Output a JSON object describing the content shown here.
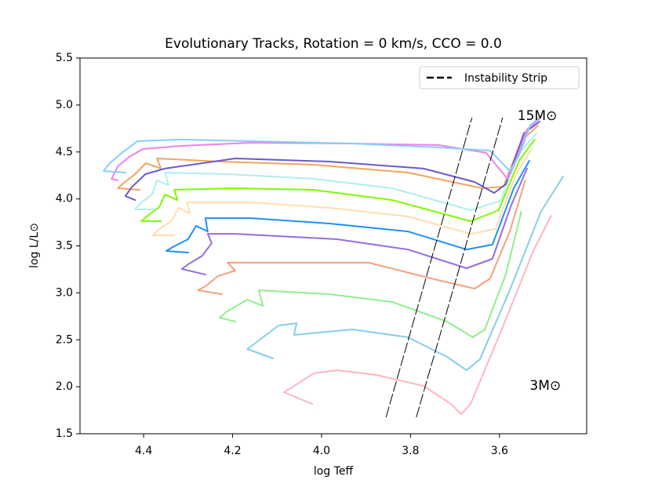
{
  "chart_data": {
    "type": "line",
    "title": "Evolutionary Tracks, Rotation = 0 km/s, CCO = 0.0",
    "xlabel": "log Teff",
    "ylabel": "log L/L⊙",
    "xlim": [
      4.543,
      3.404
    ],
    "ylim": [
      1.5,
      5.5
    ],
    "xticks": [
      {
        "value": 4.4,
        "label": "4.4"
      },
      {
        "value": 4.2,
        "label": "4.2"
      },
      {
        "value": 4.0,
        "label": "4.0"
      },
      {
        "value": 3.8,
        "label": "3.8"
      },
      {
        "value": 3.6,
        "label": "3.6"
      }
    ],
    "yticks": [
      {
        "value": 1.5,
        "label": "1.5"
      },
      {
        "value": 2.0,
        "label": "2.0"
      },
      {
        "value": 2.5,
        "label": "2.5"
      },
      {
        "value": 3.0,
        "label": "3.0"
      },
      {
        "value": 3.5,
        "label": "3.5"
      },
      {
        "value": 4.0,
        "label": "4.0"
      },
      {
        "value": 4.5,
        "label": "4.5"
      },
      {
        "value": 5.0,
        "label": "5.0"
      },
      {
        "value": 5.5,
        "label": "5.5"
      }
    ],
    "legend_position": "upper right",
    "annotations": [
      {
        "text": "15M⊙",
        "x": 3.515,
        "y": 4.88
      },
      {
        "text": "3M⊙",
        "x": 3.497,
        "y": 2.01
      }
    ],
    "strip": {
      "name": "Instability Strip",
      "color": "#000000",
      "lines": [
        {
          "x": [
            3.855,
            3.662
          ],
          "values": [
            1.675,
            4.865
          ]
        },
        {
          "x": [
            3.787,
            3.593
          ],
          "values": [
            1.675,
            4.865
          ]
        }
      ]
    },
    "series": [
      {
        "color": "#ffb6c1",
        "x": [
          4.021,
          4.085,
          4.067,
          4.018,
          3.965,
          3.877,
          3.771,
          3.709,
          3.686,
          3.665,
          3.595,
          3.524,
          3.484
        ],
        "values": [
          1.817,
          1.943,
          1.993,
          2.143,
          2.176,
          2.126,
          2.009,
          1.817,
          1.709,
          1.817,
          2.611,
          3.446,
          3.821
        ]
      },
      {
        "color": "#87ceeb",
        "x": [
          4.109,
          4.167,
          4.15,
          4.097,
          4.056,
          4.062,
          3.93,
          3.806,
          3.718,
          3.674,
          3.644,
          3.577,
          3.507,
          3.457
        ],
        "values": [
          2.302,
          2.402,
          2.46,
          2.652,
          2.677,
          2.552,
          2.611,
          2.527,
          2.318,
          2.176,
          2.293,
          3.028,
          3.863,
          4.239
        ]
      },
      {
        "color": "#90ee90",
        "x": [
          4.194,
          4.229,
          4.215,
          4.167,
          4.132,
          4.141,
          3.982,
          3.841,
          3.718,
          3.66,
          3.633,
          3.586,
          3.551
        ],
        "values": [
          2.694,
          2.736,
          2.794,
          2.928,
          2.861,
          3.028,
          2.986,
          2.903,
          2.694,
          2.527,
          2.611,
          3.195,
          3.863
        ]
      },
      {
        "color": "#f6a07e",
        "x": [
          4.224,
          4.278,
          4.261,
          4.233,
          4.194,
          4.211,
          4.053,
          3.894,
          3.753,
          3.656,
          3.621,
          3.577,
          3.542
        ],
        "values": [
          2.986,
          3.028,
          3.07,
          3.178,
          3.237,
          3.321,
          3.321,
          3.321,
          3.153,
          3.045,
          3.153,
          3.654,
          4.197
        ]
      },
      {
        "color": "#9370db",
        "x": [
          4.261,
          4.314,
          4.3,
          4.268,
          4.247,
          4.256,
          4.194,
          3.965,
          3.806,
          3.674,
          3.616,
          3.574,
          3.538
        ],
        "values": [
          3.195,
          3.254,
          3.304,
          3.396,
          3.529,
          3.629,
          3.629,
          3.571,
          3.462,
          3.262,
          3.362,
          3.93,
          4.323
        ]
      },
      {
        "color": "#1e90ff",
        "x": [
          4.3,
          4.349,
          4.335,
          4.3,
          4.282,
          4.256,
          4.261,
          4.159,
          3.982,
          3.806,
          3.674,
          3.616,
          3.568,
          3.533
        ],
        "values": [
          3.429,
          3.446,
          3.487,
          3.571,
          3.713,
          3.654,
          3.796,
          3.796,
          3.738,
          3.654,
          3.462,
          3.513,
          4.114,
          4.406
        ]
      },
      {
        "color": "#ffdead",
        "x": [
          4.331,
          4.379,
          4.367,
          4.338,
          4.321,
          4.296,
          4.303,
          4.159,
          3.982,
          3.806,
          3.665,
          3.609,
          3.563,
          3.528
        ],
        "values": [
          3.613,
          3.613,
          3.671,
          3.763,
          3.905,
          3.846,
          3.963,
          3.963,
          3.905,
          3.813,
          3.629,
          3.679,
          4.264,
          4.531
        ]
      },
      {
        "color": "#7cfc00",
        "x": [
          4.361,
          4.405,
          4.391,
          4.365,
          4.352,
          4.324,
          4.331,
          4.194,
          4.018,
          3.841,
          3.665,
          3.602,
          3.556,
          3.521
        ],
        "values": [
          3.763,
          3.763,
          3.821,
          3.913,
          4.047,
          3.988,
          4.097,
          4.114,
          4.097,
          3.988,
          3.763,
          3.88,
          4.406,
          4.632
        ]
      },
      {
        "color": "#afeeee",
        "x": [
          4.379,
          4.419,
          4.405,
          4.381,
          4.37,
          4.344,
          4.352,
          4.211,
          4.018,
          3.841,
          3.665,
          3.598,
          3.556,
          3.517
        ],
        "values": [
          3.888,
          3.888,
          3.963,
          4.047,
          4.197,
          4.147,
          4.281,
          4.264,
          4.214,
          4.114,
          3.88,
          3.98,
          4.49,
          4.698
        ]
      },
      {
        "color": "#f4a460",
        "x": [
          4.409,
          4.458,
          4.444,
          4.419,
          4.395,
          4.361,
          4.37,
          4.229,
          4.018,
          3.806,
          3.639,
          3.591,
          3.551,
          3.514
        ],
        "values": [
          4.097,
          4.114,
          4.172,
          4.264,
          4.381,
          4.323,
          4.431,
          4.398,
          4.364,
          4.281,
          4.114,
          4.131,
          4.615,
          4.782
        ]
      },
      {
        "color": "#6a5acd",
        "x": [
          4.419,
          4.441,
          4.426,
          4.396,
          4.352,
          4.194,
          3.982,
          3.771,
          3.656,
          3.612,
          3.586,
          3.545,
          3.51
        ],
        "values": [
          3.988,
          4.03,
          4.13,
          4.264,
          4.323,
          4.431,
          4.398,
          4.323,
          4.181,
          4.064,
          4.156,
          4.698,
          4.824
        ]
      },
      {
        "color": "#ee82ee",
        "x": [
          4.458,
          4.472,
          4.458,
          4.432,
          4.402,
          4.317,
          4.159,
          3.93,
          3.736,
          3.63,
          3.582,
          3.567,
          3.538,
          3.507
        ],
        "values": [
          4.197,
          4.214,
          4.348,
          4.448,
          4.531,
          4.565,
          4.598,
          4.59,
          4.573,
          4.49,
          4.214,
          4.364,
          4.74,
          4.865
        ]
      },
      {
        "color": "#87cefa",
        "x": [
          4.441,
          4.49,
          4.476,
          4.449,
          4.414,
          4.317,
          4.159,
          3.93,
          3.736,
          3.621,
          3.577,
          3.556,
          3.531,
          3.507
        ],
        "values": [
          4.281,
          4.297,
          4.381,
          4.49,
          4.615,
          4.632,
          4.615,
          4.59,
          4.548,
          4.515,
          4.297,
          4.465,
          4.782,
          4.882
        ]
      }
    ]
  }
}
